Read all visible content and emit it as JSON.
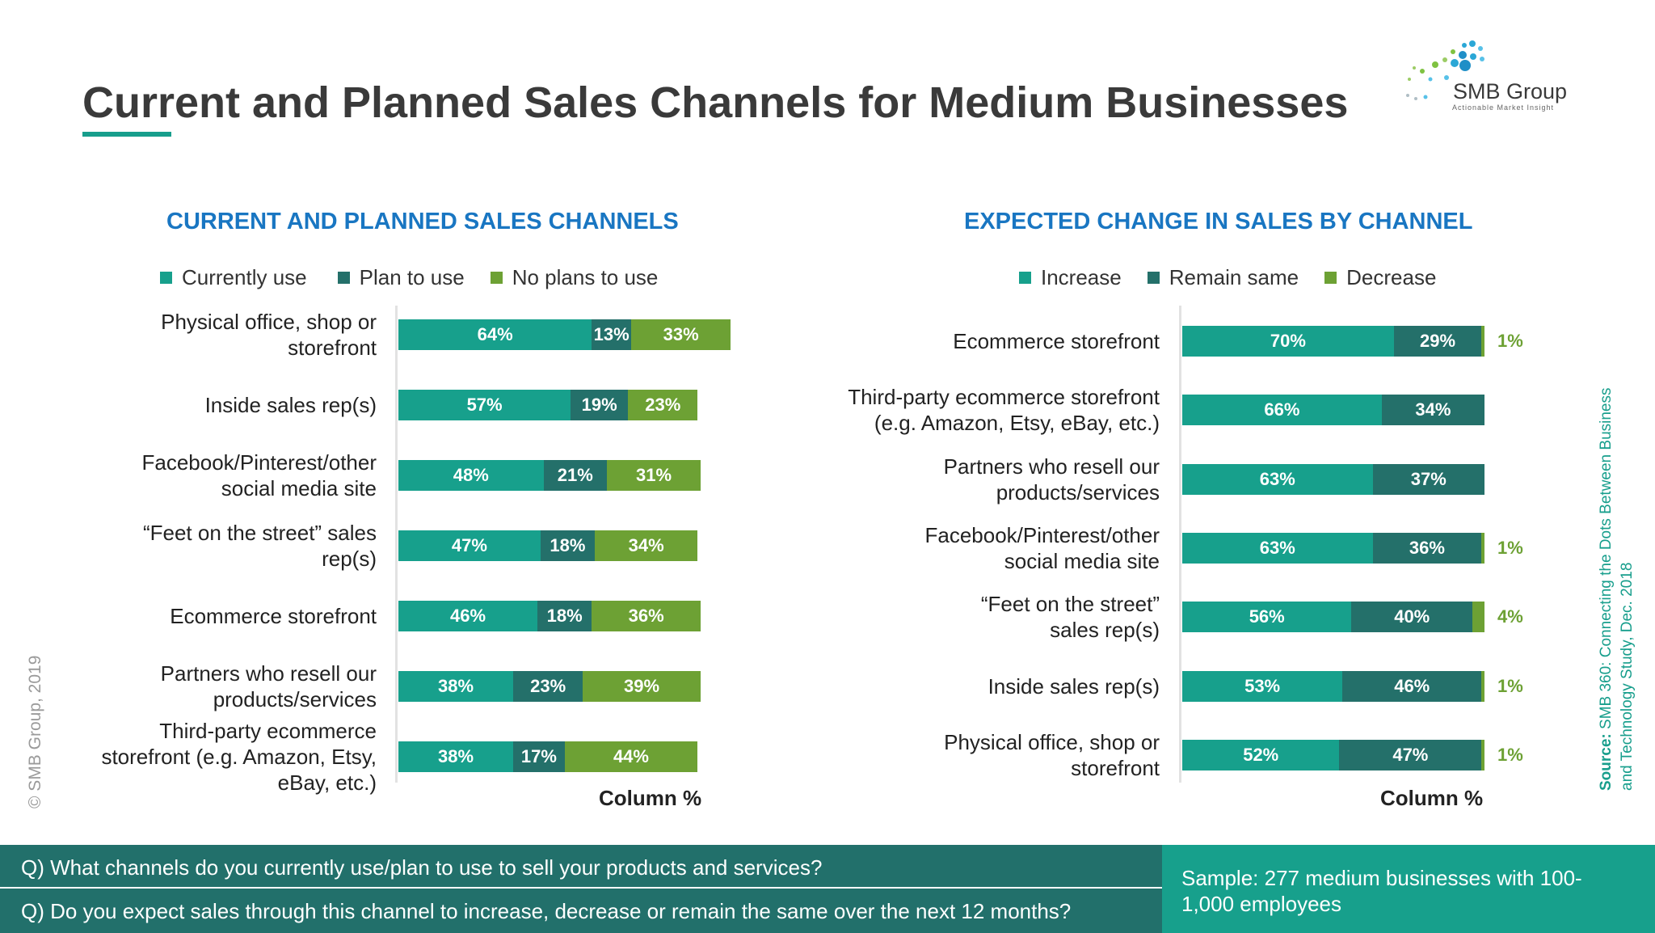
{
  "title": "Current and Planned Sales Channels for Medium Businesses",
  "logo": {
    "name": "SMB Group",
    "tagline": "Actionable Market Insight"
  },
  "colors": {
    "c1": "#17a08c",
    "c2": "#24706a",
    "c3": "#6da134",
    "title_blue": "#1976c2"
  },
  "chart_data": [
    {
      "type": "bar",
      "orientation": "horizontal-stacked",
      "title": "CURRENT AND PLANNED SALES CHANNELS",
      "axis_note": "Column %",
      "categories": [
        [
          "Physical office, shop or",
          "storefront"
        ],
        [
          "Inside sales rep(s)"
        ],
        [
          "Facebook/Pinterest/other",
          "social media site"
        ],
        [
          "“Feet on the street” sales",
          "rep(s)"
        ],
        [
          "Ecommerce storefront"
        ],
        [
          "Partners who resell our",
          "products/services"
        ],
        [
          "Third-party ecommerce",
          "storefront (e.g. Amazon, Etsy,",
          "eBay, etc.)"
        ]
      ],
      "series": [
        {
          "name": "Currently use",
          "values": [
            64,
            57,
            48,
            47,
            46,
            38,
            38
          ]
        },
        {
          "name": "Plan to use",
          "values": [
            13,
            19,
            21,
            18,
            18,
            23,
            17
          ]
        },
        {
          "name": "No plans to use",
          "values": [
            33,
            23,
            31,
            34,
            36,
            39,
            44
          ]
        }
      ]
    },
    {
      "type": "bar",
      "orientation": "horizontal-stacked",
      "title": "EXPECTED CHANGE IN SALES BY CHANNEL",
      "axis_note": "Column %",
      "categories": [
        [
          "Ecommerce storefront"
        ],
        [
          "Third-party ecommerce storefront",
          "(e.g. Amazon, Etsy, eBay, etc.)"
        ],
        [
          "Partners who resell our",
          "products/services"
        ],
        [
          "Facebook/Pinterest/other",
          "social media site"
        ],
        [
          "“Feet on the street”",
          "sales rep(s)"
        ],
        [
          "Inside sales rep(s)"
        ],
        [
          "Physical office, shop or",
          "storefront"
        ]
      ],
      "series": [
        {
          "name": "Increase",
          "values": [
            70,
            66,
            63,
            63,
            56,
            53,
            52
          ]
        },
        {
          "name": "Remain same",
          "values": [
            29,
            34,
            37,
            36,
            40,
            46,
            47
          ]
        },
        {
          "name": "Decrease",
          "values": [
            1,
            0,
            0,
            1,
            4,
            1,
            1
          ]
        }
      ]
    }
  ],
  "copyright": "© SMB Group, 2019",
  "source": {
    "label": "Source:",
    "text": "SMB 360: Connecting the Dots Between Business and Technology  Study, Dec. 2018"
  },
  "footer": {
    "q1": "Q) What channels do you currently use/plan to use to sell your products and services?",
    "q2": "Q) Do you expect sales through this channel to increase, decrease or remain the same over the next 12 months?",
    "sample": "Sample: 277 medium businesses with 100-1,000 employees"
  }
}
